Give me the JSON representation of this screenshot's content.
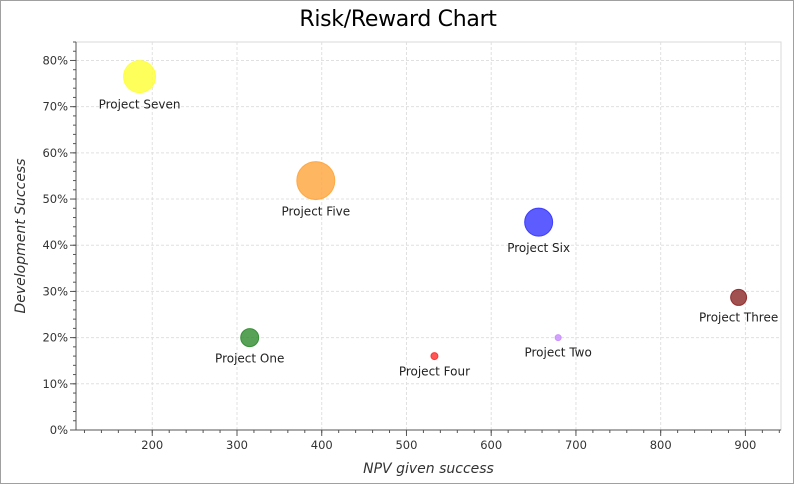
{
  "chart_data": {
    "type": "scatter",
    "title": "Risk/Reward Chart",
    "xlabel": "NPV given success",
    "ylabel": "Development Success",
    "xlim": [
      110,
      942
    ],
    "ylim": [
      0,
      0.84
    ],
    "x_ticks": [
      200,
      300,
      400,
      500,
      600,
      700,
      800,
      900
    ],
    "x_tick_labels": [
      "200",
      "300",
      "400",
      "500",
      "600",
      "700",
      "800",
      "900"
    ],
    "y_ticks": [
      0,
      0.1,
      0.2,
      0.3,
      0.4,
      0.5,
      0.6,
      0.7,
      0.8
    ],
    "y_tick_labels": [
      "0%",
      "10%",
      "20%",
      "30%",
      "40%",
      "50%",
      "60%",
      "70%",
      "80%"
    ],
    "grid": true,
    "legend": false,
    "points": [
      {
        "label": "Project Seven",
        "x": 185,
        "y": 0.765,
        "size": 16,
        "color": "#ffff33"
      },
      {
        "label": "Project Five",
        "x": 393,
        "y": 0.54,
        "size": 19,
        "color": "#ffa43a"
      },
      {
        "label": "Project Six",
        "x": 656,
        "y": 0.45,
        "size": 14,
        "color": "#3333ff"
      },
      {
        "label": "Project Three",
        "x": 892,
        "y": 0.287,
        "size": 8,
        "color": "#8b2525"
      },
      {
        "label": "Project One",
        "x": 315,
        "y": 0.2,
        "size": 9,
        "color": "#2e8b2e"
      },
      {
        "label": "Project Two",
        "x": 679,
        "y": 0.2,
        "size": 3,
        "color": "#c88cff"
      },
      {
        "label": "Project Four",
        "x": 533,
        "y": 0.16,
        "size": 3.5,
        "color": "#ff2a2a"
      }
    ]
  }
}
